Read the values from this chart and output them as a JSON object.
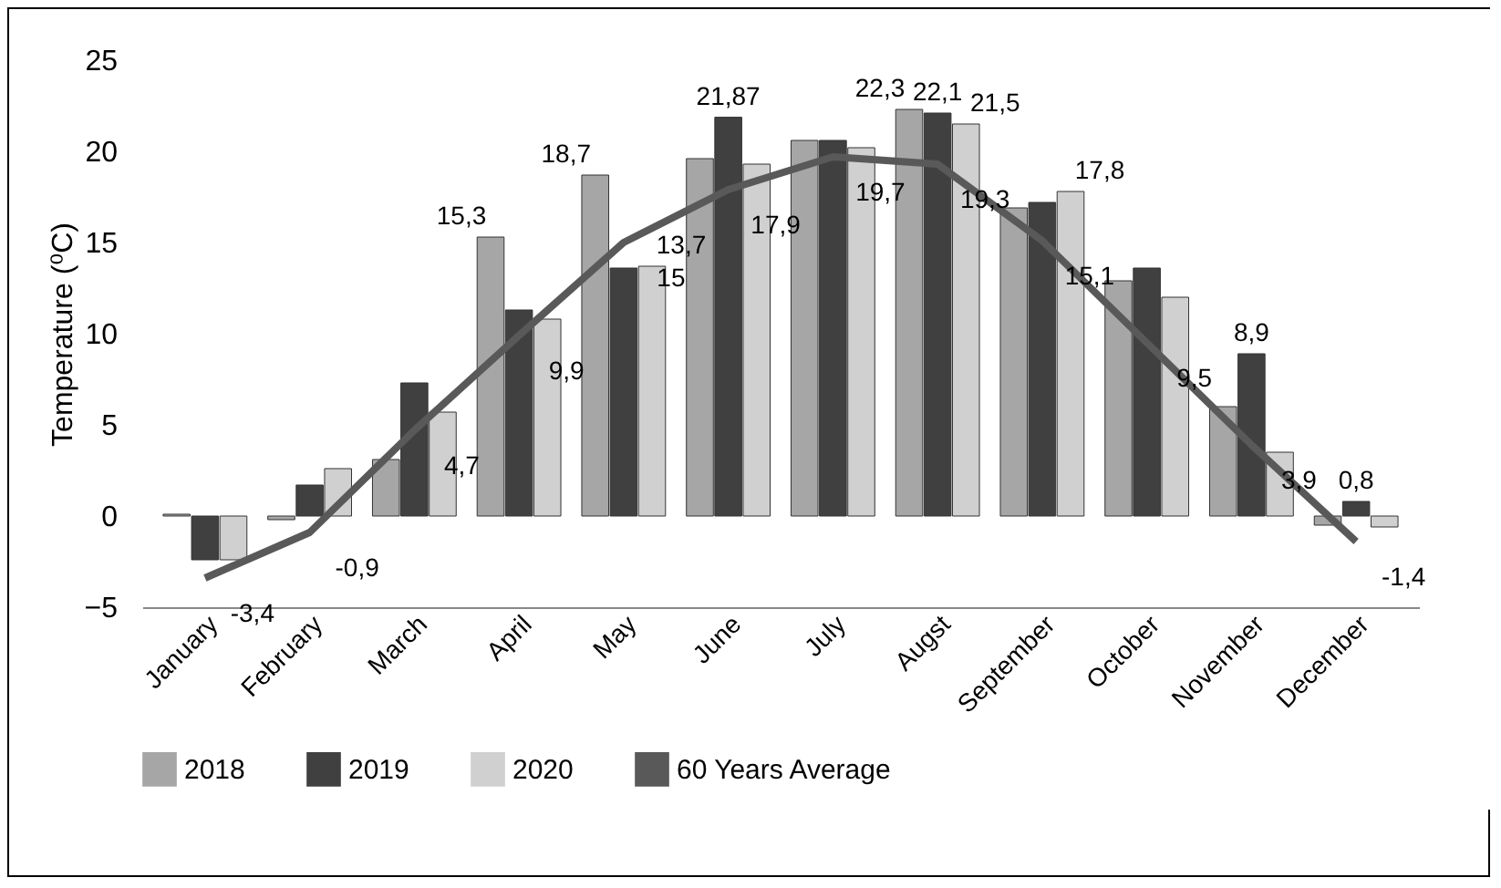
{
  "chart_data": {
    "type": "bar",
    "ylabel": "Temperature (⁰C)",
    "categories": [
      "January",
      "February",
      "March",
      "April",
      "May",
      "June",
      "July",
      "Augst",
      "September",
      "October",
      "November",
      "December"
    ],
    "series": [
      {
        "name": "2018",
        "color": "#a6a6a6",
        "values": [
          0.1,
          -0.2,
          3.1,
          15.3,
          18.7,
          19.6,
          20.6,
          22.3,
          16.9,
          12.9,
          6.0,
          -0.5
        ],
        "value_labels": [
          null,
          null,
          null,
          "15,3",
          "18,7",
          null,
          null,
          "22,3",
          null,
          null,
          null,
          null
        ]
      },
      {
        "name": "2019",
        "color": "#404040",
        "values": [
          -2.4,
          1.7,
          7.3,
          11.3,
          13.6,
          21.87,
          20.6,
          22.1,
          17.2,
          13.6,
          8.9,
          0.8
        ],
        "value_labels": [
          null,
          null,
          null,
          null,
          null,
          "21,87",
          null,
          "22,1",
          null,
          null,
          "8,9",
          "0,8"
        ]
      },
      {
        "name": "2020",
        "color": "#d0d0d0",
        "values": [
          -2.4,
          2.6,
          5.7,
          10.8,
          13.7,
          19.3,
          20.2,
          21.5,
          17.8,
          12.0,
          3.5,
          -0.6
        ],
        "value_labels": [
          null,
          null,
          null,
          null,
          "13,7",
          null,
          null,
          "21,5",
          "17,8",
          null,
          null,
          null
        ]
      },
      {
        "name": "60 Years Average",
        "type": "line",
        "color": "#595959",
        "values": [
          -3.4,
          -0.9,
          4.7,
          9.9,
          15,
          17.9,
          19.7,
          19.3,
          15.1,
          9.5,
          3.9,
          -1.4
        ],
        "value_labels": [
          "-3,4",
          "-0,9",
          "4,7",
          "9,9",
          "15",
          "17,9",
          "19,7",
          "19,3",
          "15,1",
          "9,5",
          "3,9",
          "-1,4"
        ]
      }
    ],
    "ylim": [
      -5,
      25
    ],
    "yticks": [
      -5,
      0,
      5,
      10,
      15,
      20,
      25
    ],
    "legend": "bottom",
    "marker": "none",
    "line_style": "solid"
  }
}
